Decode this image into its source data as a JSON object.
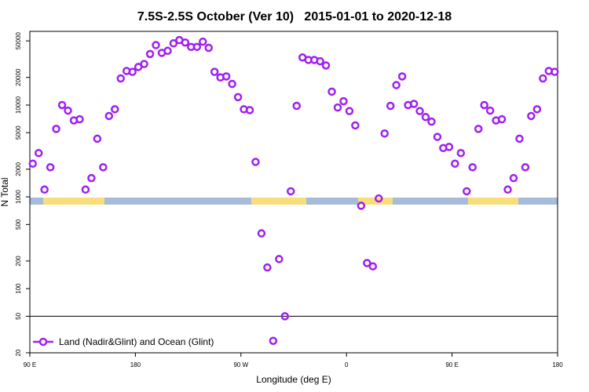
{
  "chart_data": {
    "type": "scatter",
    "title": "7.5S-2.5S October (Ver 10)   2015-01-01 to 2020-12-18",
    "xlabel": "Longitude (deg E)",
    "ylabel": "N Total",
    "xlim": [
      90,
      540
    ],
    "ylim": [
      20,
      63500
    ],
    "log_y": true,
    "xticks": [
      {
        "value": 90,
        "label": "90 E"
      },
      {
        "value": 180,
        "label": "180"
      },
      {
        "value": 270,
        "label": "90 W"
      },
      {
        "value": 360,
        "label": "0"
      },
      {
        "value": 450,
        "label": "90 E"
      },
      {
        "value": 540,
        "label": "180"
      }
    ],
    "yticks": [
      20,
      50,
      100,
      200,
      500,
      1000,
      2000,
      5000,
      10000,
      20000,
      50000
    ],
    "hline": 50,
    "legend": "lower left",
    "series": [
      {
        "name": "Land (Nadir&Glint) and Ocean (Glint)",
        "color": "#a020f0",
        "x": [
          92.5,
          97.5,
          102.5,
          107.5,
          112.5,
          117.5,
          122.5,
          127.5,
          132.5,
          137.5,
          142.5,
          147.5,
          152.5,
          157.5,
          162.5,
          167.5,
          172.5,
          177.5,
          182.5,
          187.5,
          192.5,
          197.5,
          202.5,
          207.5,
          212.5,
          217.5,
          222.5,
          227.5,
          232.5,
          237.5,
          242.5,
          247.5,
          252.5,
          257.5,
          262.5,
          267.5,
          272.5,
          277.5,
          282.5,
          287.5,
          292.5,
          297.5,
          302.5,
          307.5,
          312.5,
          317.5,
          322.5,
          327.5,
          332.5,
          337.5,
          342.5,
          347.5,
          352.5,
          357.5,
          362.5,
          367.5,
          372.5,
          377.5,
          382.5,
          387.5,
          392.5,
          397.5,
          402.5,
          407.5,
          412.5,
          417.5,
          422.5,
          427.5,
          432.5,
          437.5,
          442.5,
          447.5,
          452.5,
          457.5,
          462.5,
          467.5,
          472.5,
          477.5,
          482.5,
          487.5,
          492.5,
          497.5,
          502.5,
          507.5,
          512.5,
          517.5,
          522.5,
          527.5,
          532.5,
          537.5
        ],
        "values": [
          2300,
          3000,
          1200,
          2100,
          5500,
          10000,
          8700,
          6800,
          7000,
          1200,
          1600,
          4300,
          2100,
          7600,
          9000,
          19500,
          23500,
          23000,
          26000,
          28000,
          36000,
          45000,
          37000,
          39000,
          47000,
          51000,
          48000,
          43000,
          43000,
          49000,
          42000,
          23000,
          20000,
          20500,
          17000,
          12200,
          9000,
          8800,
          2400,
          400,
          170,
          27,
          210,
          50,
          1150,
          9800,
          33000,
          31000,
          31000,
          30000,
          27000,
          14000,
          9400,
          11000,
          8600,
          6000,
          800,
          190,
          175,
          960,
          4900,
          9800,
          16500,
          20500,
          10000,
          10300,
          8600,
          7400,
          6600,
          4500,
          3400,
          3500,
          2300,
          3000,
          1150,
          2100,
          5500,
          10000,
          8700,
          6800,
          7000,
          1200,
          1600,
          4300,
          2100,
          7600,
          9000,
          19500,
          23500,
          23000
        ]
      }
    ]
  }
}
